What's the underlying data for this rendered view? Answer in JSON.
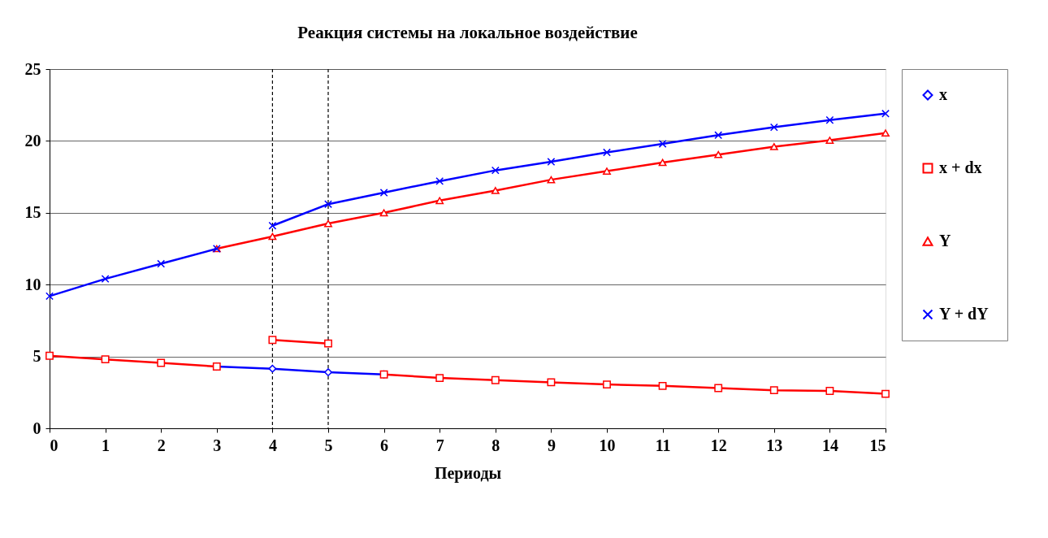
{
  "chart_data": {
    "type": "line",
    "title": "Реакция системы на локальное воздействие",
    "xlabel": "Периоды",
    "xlim": [
      0,
      15
    ],
    "xticks": [
      0,
      1,
      2,
      3,
      4,
      5,
      6,
      7,
      8,
      9,
      10,
      11,
      12,
      13,
      14,
      15
    ],
    "ylim": [
      0,
      25
    ],
    "yticks": [
      0,
      5,
      10,
      15,
      20,
      25
    ],
    "grid": "y",
    "legend": "right",
    "line_style": "solid",
    "series": [
      {
        "name": "x",
        "color": "#0000ff",
        "marker": "diamond",
        "x": [
          3,
          4,
          5,
          6
        ],
        "values": [
          4.3,
          4.15,
          3.9,
          3.75
        ]
      },
      {
        "name": "x + dx",
        "color": "#ff0000",
        "marker": "square",
        "x": [
          0,
          1,
          2,
          3
        ],
        "values": [
          5.05,
          4.8,
          4.55,
          4.3
        ]
      },
      {
        "color": "#ff0000",
        "marker": "square",
        "x": [
          4,
          5
        ],
        "values": [
          6.15,
          5.9
        ]
      },
      {
        "color": "#ff0000",
        "marker": "square",
        "x": [
          6,
          7,
          8,
          9,
          10,
          11,
          12,
          13,
          14,
          15
        ],
        "values": [
          3.75,
          3.5,
          3.35,
          3.2,
          3.05,
          2.95,
          2.8,
          2.65,
          2.6,
          2.4
        ]
      },
      {
        "name": "Y",
        "color": "#ff0000",
        "marker": "triangle",
        "x": [
          3,
          4,
          5,
          6,
          7,
          8,
          9,
          10,
          11,
          12,
          13,
          14,
          15
        ],
        "values": [
          12.5,
          13.35,
          14.25,
          15.0,
          15.85,
          16.55,
          17.3,
          17.9,
          18.5,
          19.05,
          19.6,
          20.05,
          20.55
        ]
      },
      {
        "name": "Y + dY",
        "color": "#0000ff",
        "marker": "cross",
        "x": [
          0,
          1,
          2,
          3
        ],
        "values": [
          9.2,
          10.4,
          11.45,
          12.5
        ]
      },
      {
        "color": "#0000ff",
        "marker": "cross",
        "x": [
          4,
          5,
          6,
          7,
          8,
          9,
          10,
          11,
          12,
          13,
          14,
          15
        ],
        "values": [
          14.1,
          15.6,
          16.4,
          17.2,
          17.95,
          18.55,
          19.2,
          19.8,
          20.4,
          20.95,
          21.45,
          21.9
        ]
      }
    ],
    "ref_lines": [
      {
        "axis": "x",
        "value": 4,
        "color": "#000000",
        "line_style": "dashed"
      },
      {
        "axis": "x",
        "value": 5,
        "color": "#000000",
        "line_style": "dashed"
      }
    ]
  }
}
